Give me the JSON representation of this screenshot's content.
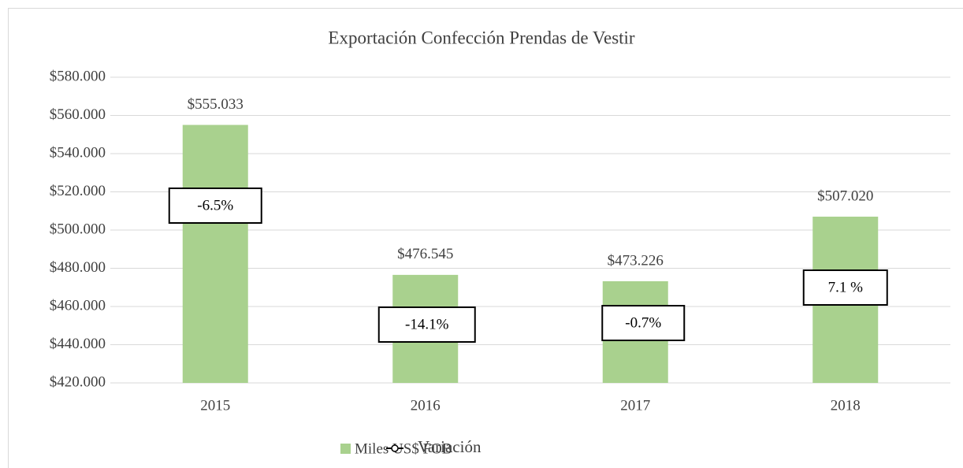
{
  "chart_data": {
    "type": "bar",
    "title": "Exportación Confección Prendas de Vestir",
    "categories": [
      "2015",
      "2016",
      "2017",
      "2018"
    ],
    "series": [
      {
        "name": "Miles US$ FOB",
        "color": "#a9d18e",
        "values": [
          555033,
          476545,
          473226,
          507020
        ],
        "value_labels": [
          "$555.033",
          "$476.545",
          "$473.226",
          "$507.020"
        ]
      },
      {
        "name": "Variación",
        "color": "#000000",
        "values": [
          -6.5,
          -14.1,
          -0.7,
          7.1
        ],
        "value_labels": [
          "-6.5%",
          "-14.1%",
          "-0.7%",
          "7.1 %"
        ]
      }
    ],
    "ylim": [
      420000,
      580000
    ],
    "yticks": [
      {
        "value": 420000,
        "label": "$420.000"
      },
      {
        "value": 440000,
        "label": "$440.000"
      },
      {
        "value": 460000,
        "label": "$460.000"
      },
      {
        "value": 480000,
        "label": "$480.000"
      },
      {
        "value": 500000,
        "label": "$500.000"
      },
      {
        "value": 520000,
        "label": "$520.000"
      },
      {
        "value": 540000,
        "label": "$540.000"
      },
      {
        "value": 560000,
        "label": "$560.000"
      },
      {
        "value": 580000,
        "label": "$580.000"
      }
    ],
    "grid": true
  }
}
